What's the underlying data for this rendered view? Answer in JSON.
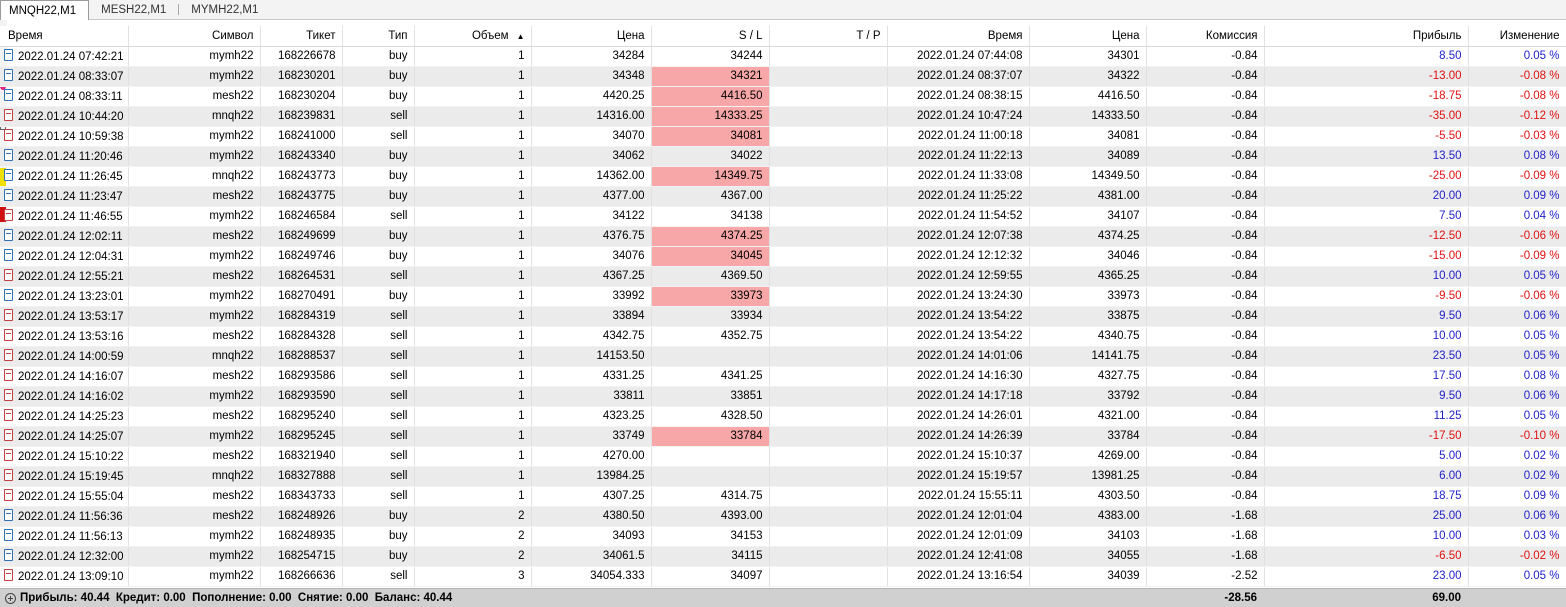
{
  "tabs": [
    "MNQH22,M1",
    "MESH22,M1",
    "MYMH22,M1"
  ],
  "columns": [
    "Время",
    "Символ",
    "Тикет",
    "Тип",
    "Объем",
    "Цена",
    "S / L",
    "T / P",
    "Время",
    "Цена",
    "Комиссия",
    "Прибыль",
    "Изменение"
  ],
  "sort_indicator": "▲",
  "rows": [
    {
      "open_time": "2022.01.24 07:42:21",
      "symbol": "mymh22",
      "ticket": "168226678",
      "type": "buy",
      "volume": "1",
      "price": "34284",
      "sl": "34244",
      "tp": "",
      "close_time": "2022.01.24 07:44:08",
      "close_price": "34301",
      "commission": "-0.84",
      "profit": "8.50",
      "change": "0.05 %",
      "sl_hit": false
    },
    {
      "open_time": "2022.01.24 08:33:07",
      "symbol": "mymh22",
      "ticket": "168230201",
      "type": "buy",
      "volume": "1",
      "price": "34348",
      "sl": "34321",
      "tp": "",
      "close_time": "2022.01.24 08:37:07",
      "close_price": "34322",
      "commission": "-0.84",
      "profit": "-13.00",
      "change": "-0.08 %",
      "sl_hit": true
    },
    {
      "open_time": "2022.01.24 08:33:11",
      "symbol": "mesh22",
      "ticket": "168230204",
      "type": "buy",
      "volume": "1",
      "price": "4420.25",
      "sl": "4416.50",
      "tp": "",
      "close_time": "2022.01.24 08:38:15",
      "close_price": "4416.50",
      "commission": "-0.84",
      "profit": "-18.75",
      "change": "-0.08 %",
      "sl_hit": true
    },
    {
      "open_time": "2022.01.24 10:44:20",
      "symbol": "mnqh22",
      "ticket": "168239831",
      "type": "sell",
      "volume": "1",
      "price": "14316.00",
      "sl": "14333.25",
      "tp": "",
      "close_time": "2022.01.24 10:47:24",
      "close_price": "14333.50",
      "commission": "-0.84",
      "profit": "-35.00",
      "change": "-0.12 %",
      "sl_hit": true
    },
    {
      "open_time": "2022.01.24 10:59:38",
      "symbol": "mymh22",
      "ticket": "168241000",
      "type": "sell",
      "volume": "1",
      "price": "34070",
      "sl": "34081",
      "tp": "",
      "close_time": "2022.01.24 11:00:18",
      "close_price": "34081",
      "commission": "-0.84",
      "profit": "-5.50",
      "change": "-0.03 %",
      "sl_hit": true
    },
    {
      "open_time": "2022.01.24 11:20:46",
      "symbol": "mymh22",
      "ticket": "168243340",
      "type": "buy",
      "volume": "1",
      "price": "34062",
      "sl": "34022",
      "tp": "",
      "close_time": "2022.01.24 11:22:13",
      "close_price": "34089",
      "commission": "-0.84",
      "profit": "13.50",
      "change": "0.08 %",
      "sl_hit": false
    },
    {
      "open_time": "2022.01.24 11:26:45",
      "symbol": "mnqh22",
      "ticket": "168243773",
      "type": "buy",
      "volume": "1",
      "price": "14362.00",
      "sl": "14349.75",
      "tp": "",
      "close_time": "2022.01.24 11:33:08",
      "close_price": "14349.50",
      "commission": "-0.84",
      "profit": "-25.00",
      "change": "-0.09 %",
      "sl_hit": true
    },
    {
      "open_time": "2022.01.24 11:23:47",
      "symbol": "mesh22",
      "ticket": "168243775",
      "type": "buy",
      "volume": "1",
      "price": "4377.00",
      "sl": "4367.00",
      "tp": "",
      "close_time": "2022.01.24 11:25:22",
      "close_price": "4381.00",
      "commission": "-0.84",
      "profit": "20.00",
      "change": "0.09 %",
      "sl_hit": false
    },
    {
      "open_time": "2022.01.24 11:46:55",
      "symbol": "mymh22",
      "ticket": "168246584",
      "type": "sell",
      "volume": "1",
      "price": "34122",
      "sl": "34138",
      "tp": "",
      "close_time": "2022.01.24 11:54:52",
      "close_price": "34107",
      "commission": "-0.84",
      "profit": "7.50",
      "change": "0.04 %",
      "sl_hit": false
    },
    {
      "open_time": "2022.01.24 12:02:11",
      "symbol": "mesh22",
      "ticket": "168249699",
      "type": "buy",
      "volume": "1",
      "price": "4376.75",
      "sl": "4374.25",
      "tp": "",
      "close_time": "2022.01.24 12:07:38",
      "close_price": "4374.25",
      "commission": "-0.84",
      "profit": "-12.50",
      "change": "-0.06 %",
      "sl_hit": true
    },
    {
      "open_time": "2022.01.24 12:04:31",
      "symbol": "mymh22",
      "ticket": "168249746",
      "type": "buy",
      "volume": "1",
      "price": "34076",
      "sl": "34045",
      "tp": "",
      "close_time": "2022.01.24 12:12:32",
      "close_price": "34046",
      "commission": "-0.84",
      "profit": "-15.00",
      "change": "-0.09 %",
      "sl_hit": true
    },
    {
      "open_time": "2022.01.24 12:55:21",
      "symbol": "mesh22",
      "ticket": "168264531",
      "type": "sell",
      "volume": "1",
      "price": "4367.25",
      "sl": "4369.50",
      "tp": "",
      "close_time": "2022.01.24 12:59:55",
      "close_price": "4365.25",
      "commission": "-0.84",
      "profit": "10.00",
      "change": "0.05 %",
      "sl_hit": false
    },
    {
      "open_time": "2022.01.24 13:23:01",
      "symbol": "mymh22",
      "ticket": "168270491",
      "type": "buy",
      "volume": "1",
      "price": "33992",
      "sl": "33973",
      "tp": "",
      "close_time": "2022.01.24 13:24:30",
      "close_price": "33973",
      "commission": "-0.84",
      "profit": "-9.50",
      "change": "-0.06 %",
      "sl_hit": true
    },
    {
      "open_time": "2022.01.24 13:53:17",
      "symbol": "mymh22",
      "ticket": "168284319",
      "type": "sell",
      "volume": "1",
      "price": "33894",
      "sl": "33934",
      "tp": "",
      "close_time": "2022.01.24 13:54:22",
      "close_price": "33875",
      "commission": "-0.84",
      "profit": "9.50",
      "change": "0.06 %",
      "sl_hit": false
    },
    {
      "open_time": "2022.01.24 13:53:16",
      "symbol": "mesh22",
      "ticket": "168284328",
      "type": "sell",
      "volume": "1",
      "price": "4342.75",
      "sl": "4352.75",
      "tp": "",
      "close_time": "2022.01.24 13:54:22",
      "close_price": "4340.75",
      "commission": "-0.84",
      "profit": "10.00",
      "change": "0.05 %",
      "sl_hit": false
    },
    {
      "open_time": "2022.01.24 14:00:59",
      "symbol": "mnqh22",
      "ticket": "168288537",
      "type": "sell",
      "volume": "1",
      "price": "14153.50",
      "sl": "",
      "tp": "",
      "close_time": "2022.01.24 14:01:06",
      "close_price": "14141.75",
      "commission": "-0.84",
      "profit": "23.50",
      "change": "0.05 %",
      "sl_hit": false
    },
    {
      "open_time": "2022.01.24 14:16:07",
      "symbol": "mesh22",
      "ticket": "168293586",
      "type": "sell",
      "volume": "1",
      "price": "4331.25",
      "sl": "4341.25",
      "tp": "",
      "close_time": "2022.01.24 14:16:30",
      "close_price": "4327.75",
      "commission": "-0.84",
      "profit": "17.50",
      "change": "0.08 %",
      "sl_hit": false
    },
    {
      "open_time": "2022.01.24 14:16:02",
      "symbol": "mymh22",
      "ticket": "168293590",
      "type": "sell",
      "volume": "1",
      "price": "33811",
      "sl": "33851",
      "tp": "",
      "close_time": "2022.01.24 14:17:18",
      "close_price": "33792",
      "commission": "-0.84",
      "profit": "9.50",
      "change": "0.06 %",
      "sl_hit": false
    },
    {
      "open_time": "2022.01.24 14:25:23",
      "symbol": "mesh22",
      "ticket": "168295240",
      "type": "sell",
      "volume": "1",
      "price": "4323.25",
      "sl": "4328.50",
      "tp": "",
      "close_time": "2022.01.24 14:26:01",
      "close_price": "4321.00",
      "commission": "-0.84",
      "profit": "11.25",
      "change": "0.05 %",
      "sl_hit": false
    },
    {
      "open_time": "2022.01.24 14:25:07",
      "symbol": "mymh22",
      "ticket": "168295245",
      "type": "sell",
      "volume": "1",
      "price": "33749",
      "sl": "33784",
      "tp": "",
      "close_time": "2022.01.24 14:26:39",
      "close_price": "33784",
      "commission": "-0.84",
      "profit": "-17.50",
      "change": "-0.10 %",
      "sl_hit": true
    },
    {
      "open_time": "2022.01.24 15:10:22",
      "symbol": "mesh22",
      "ticket": "168321940",
      "type": "sell",
      "volume": "1",
      "price": "4270.00",
      "sl": "",
      "tp": "",
      "close_time": "2022.01.24 15:10:37",
      "close_price": "4269.00",
      "commission": "-0.84",
      "profit": "5.00",
      "change": "0.02 %",
      "sl_hit": false
    },
    {
      "open_time": "2022.01.24 15:19:45",
      "symbol": "mnqh22",
      "ticket": "168327888",
      "type": "sell",
      "volume": "1",
      "price": "13984.25",
      "sl": "",
      "tp": "",
      "close_time": "2022.01.24 15:19:57",
      "close_price": "13981.25",
      "commission": "-0.84",
      "profit": "6.00",
      "change": "0.02 %",
      "sl_hit": false
    },
    {
      "open_time": "2022.01.24 15:55:04",
      "symbol": "mesh22",
      "ticket": "168343733",
      "type": "sell",
      "volume": "1",
      "price": "4307.25",
      "sl": "4314.75",
      "tp": "",
      "close_time": "2022.01.24 15:55:11",
      "close_price": "4303.50",
      "commission": "-0.84",
      "profit": "18.75",
      "change": "0.09 %",
      "sl_hit": false
    },
    {
      "open_time": "2022.01.24 11:56:36",
      "symbol": "mesh22",
      "ticket": "168248926",
      "type": "buy",
      "volume": "2",
      "price": "4380.50",
      "sl": "4393.00",
      "tp": "",
      "close_time": "2022.01.24 12:01:04",
      "close_price": "4383.00",
      "commission": "-1.68",
      "profit": "25.00",
      "change": "0.06 %",
      "sl_hit": false
    },
    {
      "open_time": "2022.01.24 11:56:13",
      "symbol": "mymh22",
      "ticket": "168248935",
      "type": "buy",
      "volume": "2",
      "price": "34093",
      "sl": "34153",
      "tp": "",
      "close_time": "2022.01.24 12:01:09",
      "close_price": "34103",
      "commission": "-1.68",
      "profit": "10.00",
      "change": "0.03 %",
      "sl_hit": false
    },
    {
      "open_time": "2022.01.24 12:32:00",
      "symbol": "mymh22",
      "ticket": "168254715",
      "type": "buy",
      "volume": "2",
      "price": "34061.5",
      "sl": "34115",
      "tp": "",
      "close_time": "2022.01.24 12:41:08",
      "close_price": "34055",
      "commission": "-1.68",
      "profit": "-6.50",
      "change": "-0.02 %",
      "sl_hit": false
    },
    {
      "open_time": "2022.01.24 13:09:10",
      "symbol": "mymh22",
      "ticket": "168266636",
      "type": "sell",
      "volume": "3",
      "price": "34054.333",
      "sl": "34097",
      "tp": "",
      "close_time": "2022.01.24 13:16:54",
      "close_price": "34039",
      "commission": "-2.52",
      "profit": "23.00",
      "change": "0.05 %",
      "sl_hit": false
    }
  ],
  "footer": {
    "summary": "Прибыль: 40.44  Кредит: 0.00  Пополнение: 0.00  Снятие: 0.00  Баланс: 40.44",
    "total_commission": "-28.56",
    "total_profit": "69.00"
  },
  "colors": {
    "positive": "#1f1fc8",
    "negative": "#e01010",
    "sl_hit_bg": "#f7a7a7",
    "row_alt_bg": "#ebebeb",
    "footer_bg": "#d0d0d0"
  }
}
